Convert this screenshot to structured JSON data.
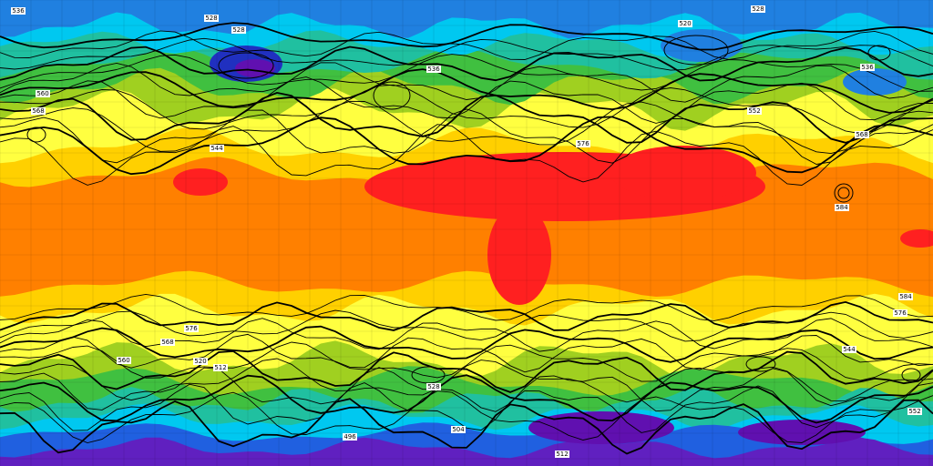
{
  "map": {
    "contour_labels": [
      "536",
      "528",
      "528",
      "520",
      "528",
      "536",
      "536",
      "560",
      "568",
      "544",
      "576",
      "552",
      "568",
      "584",
      "584",
      "576",
      "576",
      "568",
      "560",
      "520",
      "512",
      "528",
      "496",
      "504",
      "512",
      "552",
      "544"
    ]
  }
}
